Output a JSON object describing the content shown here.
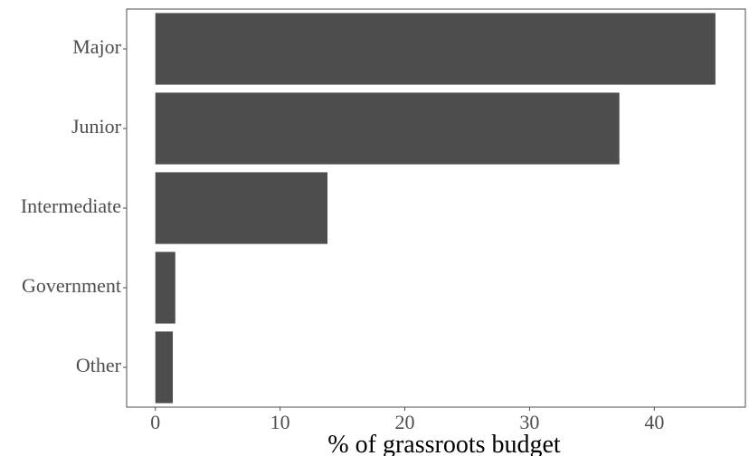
{
  "chart_data": {
    "type": "bar",
    "orientation": "horizontal",
    "categories": [
      "Major",
      "Junior",
      "Intermediate",
      "Government",
      "Other"
    ],
    "values": [
      44.9,
      37.2,
      13.8,
      1.6,
      1.4
    ],
    "title": "",
    "xlabel": "% of grassroots budget",
    "ylabel": "",
    "xlim": [
      -2.3,
      47.3
    ],
    "xticks": [
      0,
      10,
      20,
      30,
      40
    ],
    "grid": false,
    "legend": "none",
    "colors": {
      "bar": "#4d4d4d",
      "axis": "#4d4d4d",
      "background": "#ffffff"
    }
  }
}
